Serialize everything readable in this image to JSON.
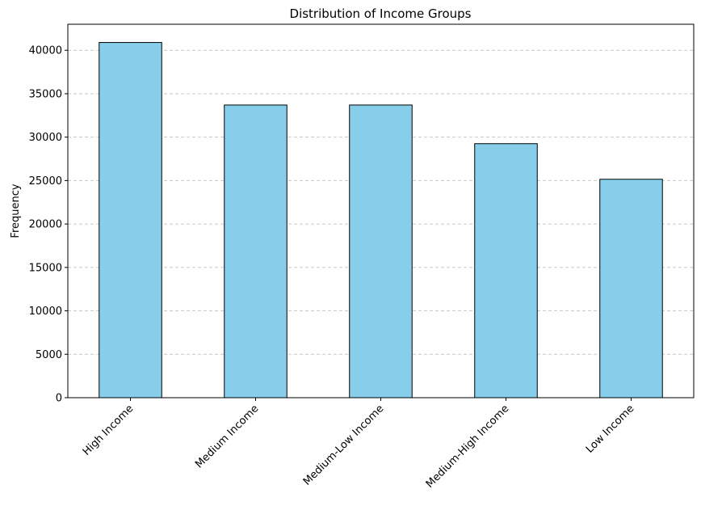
{
  "chart_data": {
    "type": "bar",
    "title": "Distribution of Income Groups",
    "xlabel": "",
    "ylabel": "Frequency",
    "categories": [
      "High Income",
      "Medium Income",
      "Medium-Low Income",
      "Medium-High Income",
      "Low Income"
    ],
    "values": [
      40900,
      33700,
      33700,
      29250,
      25150
    ],
    "ylim": [
      0,
      43000
    ],
    "yticks": [
      0,
      5000,
      10000,
      15000,
      20000,
      25000,
      30000,
      35000,
      40000
    ],
    "ytick_labels": [
      "0",
      "5000",
      "10000",
      "15000",
      "20000",
      "25000",
      "30000",
      "35000",
      "40000"
    ],
    "grid": "y-dashed",
    "legend": "none",
    "colors": {
      "bar_fill": "#87CEEB",
      "bar_edge": "#000000",
      "grid": "#c8c8c8"
    }
  }
}
